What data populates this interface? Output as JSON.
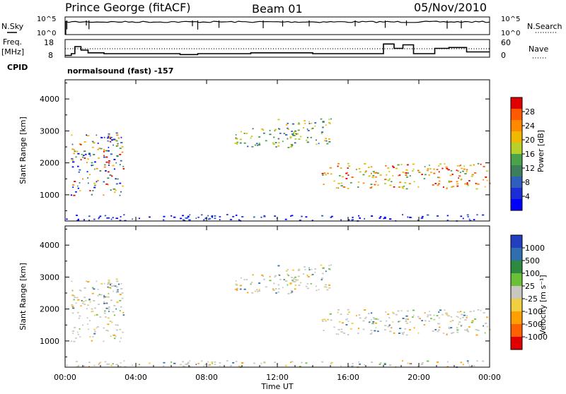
{
  "header": {
    "station": "Prince George (fitACF)",
    "beam": "Beam 01",
    "date": "05/Nov/2010"
  },
  "sky_panel": {
    "left_label": "N.Sky",
    "right_label": "N.Search",
    "left_ticks": [
      "10^5",
      "10^0"
    ],
    "right_ticks": [
      "10^5",
      "10^0"
    ]
  },
  "freq_panel": {
    "left_label_1": "Freq.",
    "left_label_2": "[MHz]",
    "right_label": "Nave",
    "left_ticks": [
      "18",
      "8"
    ],
    "right_ticks": [
      "60",
      "0"
    ],
    "cpid_label": "CPID",
    "cpid_text": "normalsound (fast) -157",
    "freq_steps": [
      [
        0,
        9
      ],
      [
        0.35,
        10
      ],
      [
        0.55,
        14
      ],
      [
        0.9,
        12
      ],
      [
        1.3,
        10.5
      ],
      [
        2.2,
        10
      ],
      [
        6.5,
        9.5
      ],
      [
        7.5,
        10
      ],
      [
        9,
        10
      ],
      [
        10.5,
        10.5
      ],
      [
        14,
        10
      ],
      [
        18,
        15.5
      ],
      [
        18.6,
        13
      ],
      [
        19.1,
        15
      ],
      [
        19.7,
        10
      ],
      [
        20.9,
        13
      ],
      [
        21.7,
        13.5
      ],
      [
        22.7,
        11
      ],
      [
        24,
        11
      ]
    ],
    "nave_dotted": 30
  },
  "chart_data": [
    {
      "type": "heatmap",
      "name": "power",
      "ylabel": "Slant Range [km]",
      "xlabel": "",
      "xlim": [
        0,
        24
      ],
      "ylim": [
        180,
        4600
      ],
      "yticks": [
        "1000",
        "2000",
        "3000",
        "4000"
      ],
      "colorbar": {
        "label": "Power [dB]",
        "ticks": [
          "4",
          "8",
          "12",
          "16",
          "20",
          "24",
          "28"
        ],
        "colors": [
          "#0000ff",
          "#1a2ed8",
          "#2f5fbd",
          "#3c7f5a",
          "#4aa24a",
          "#b8d12a",
          "#f0b800",
          "#ff8a00",
          "#ff5a00",
          "#e00000"
        ]
      },
      "echo_bands": [
        {
          "t": [
            0.3,
            3.3
          ],
          "r": [
            1000,
            2900
          ],
          "level": "mixed"
        },
        {
          "t": [
            1.8,
            2.9
          ],
          "r": [
            2600,
            3000
          ],
          "level": "low"
        },
        {
          "t": [
            9.5,
            13.3
          ],
          "r": [
            2500,
            3100
          ],
          "level": "mid"
        },
        {
          "t": [
            12,
            15
          ],
          "r": [
            2600,
            3400
          ],
          "level": "mid"
        },
        {
          "t": [
            14.5,
            24
          ],
          "r": [
            1200,
            2000
          ],
          "level": "high"
        },
        {
          "t": [
            0,
            24
          ],
          "r": [
            200,
            400
          ],
          "level": "low"
        }
      ]
    },
    {
      "type": "heatmap",
      "name": "velocity",
      "ylabel": "Slant Range [km]",
      "xlabel": "Time UT",
      "xlim": [
        0,
        24
      ],
      "ylim": [
        180,
        4600
      ],
      "yticks": [
        "1000",
        "2000",
        "3000",
        "4000"
      ],
      "xticks": [
        "00:00",
        "04:00",
        "08:00",
        "12:00",
        "16:00",
        "20:00",
        "00:00"
      ],
      "colorbar": {
        "label": "Velocity [m s-1]",
        "ticks": [
          "1000",
          "500",
          "100",
          "25",
          "-25",
          "-100",
          "-500",
          "-1000"
        ],
        "colors": [
          "#2040c0",
          "#2f6fb0",
          "#2e8a3e",
          "#6cc038",
          "#c8c8c0",
          "#f0d040",
          "#ffa000",
          "#ff6000",
          "#e00000"
        ]
      }
    }
  ]
}
